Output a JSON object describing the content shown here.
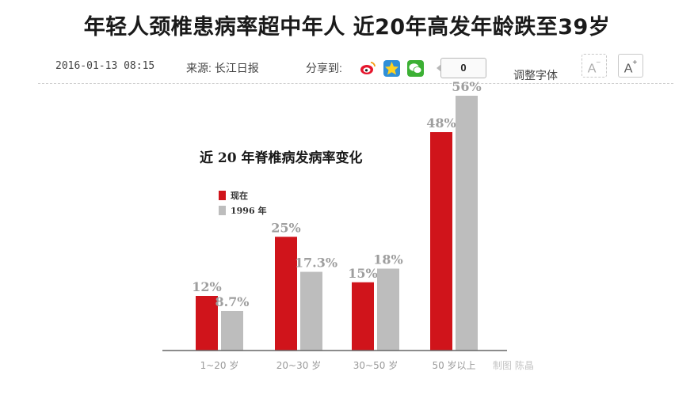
{
  "article": {
    "headline": "年轻人颈椎患病率超中年人 近20年高发年龄跌至39岁",
    "date": "2016-01-13 08:15",
    "source": "来源: 长江日报",
    "share_label": "分享到:",
    "share_icons": [
      "weibo-icon",
      "qzone-icon",
      "wechat-icon"
    ],
    "share_count": "0",
    "font_adjust_label": "调整字体",
    "font_decrease_label": "A",
    "font_increase_label": "A",
    "font_decrease_sign": "−",
    "font_increase_sign": "+"
  },
  "colors": {
    "now": "#d0141b",
    "year1996": "#bdbdbd",
    "axis": "#666666",
    "tick_label": "#9a9a9a",
    "value_label": "#9e9e9e"
  },
  "chart_data": {
    "type": "bar",
    "title": "近 20 年脊椎病发病率变化",
    "categories": [
      "1~20 岁",
      "20~30 岁",
      "30~50 岁",
      "50 岁以上"
    ],
    "series": [
      {
        "name": "现在",
        "values": [
          12,
          25,
          15,
          48
        ],
        "labels": [
          "12%",
          "25%",
          "15%",
          "48%"
        ]
      },
      {
        "name": "1996 年",
        "values": [
          8.7,
          17.3,
          18,
          56
        ],
        "labels": [
          "8.7%",
          "17.3%",
          "18%",
          "56%"
        ]
      }
    ],
    "ylim": [
      0,
      60
    ],
    "grid": false,
    "legend_position": "top-left",
    "credit": "制图 陈晶"
  }
}
